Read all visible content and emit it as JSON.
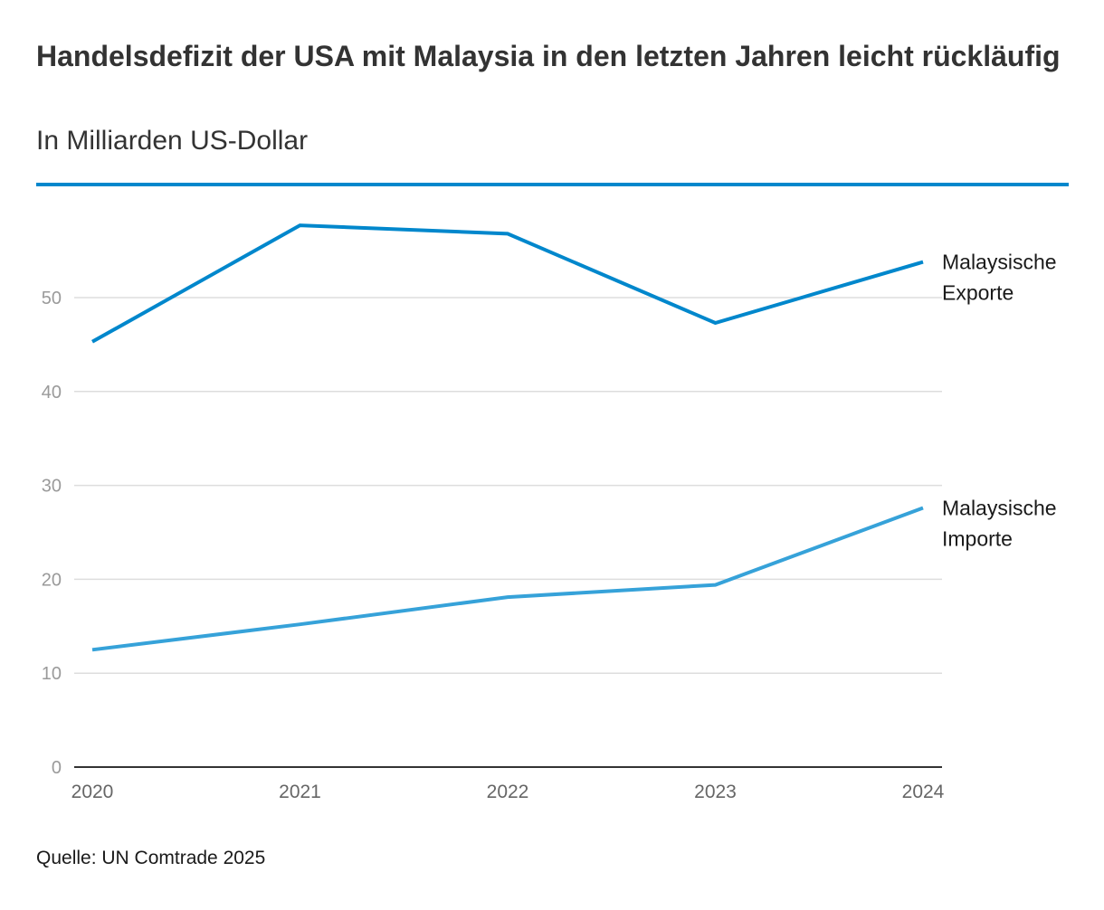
{
  "chart_data": {
    "type": "line",
    "title": "Handelsdefizit der USA mit Malaysia in den letzten Jahren leicht rückläufig",
    "subtitle": "In Milliarden US-Dollar",
    "categories": [
      "2020",
      "2021",
      "2022",
      "2023",
      "2024"
    ],
    "series": [
      {
        "name": "Malaysische Exporte",
        "label_lines": [
          "Malaysische",
          "Exporte"
        ],
        "values": [
          45.3,
          57.7,
          56.8,
          47.3,
          53.8
        ],
        "color": "#0087cc"
      },
      {
        "name": "Malaysische Importe",
        "label_lines": [
          "Malaysische",
          "Importe"
        ],
        "values": [
          12.5,
          15.2,
          18.1,
          19.4,
          27.6
        ],
        "color": "#36a2d9"
      }
    ],
    "yticks": [
      0,
      10,
      20,
      30,
      40,
      50
    ],
    "ylim": [
      0,
      60
    ],
    "xlabel": "",
    "ylabel": "",
    "grid": true,
    "source": "Quelle: UN Comtrade 2025"
  },
  "colors": {
    "accent": "#0087cc",
    "grid": "#dddddd",
    "axis": "#333333"
  }
}
